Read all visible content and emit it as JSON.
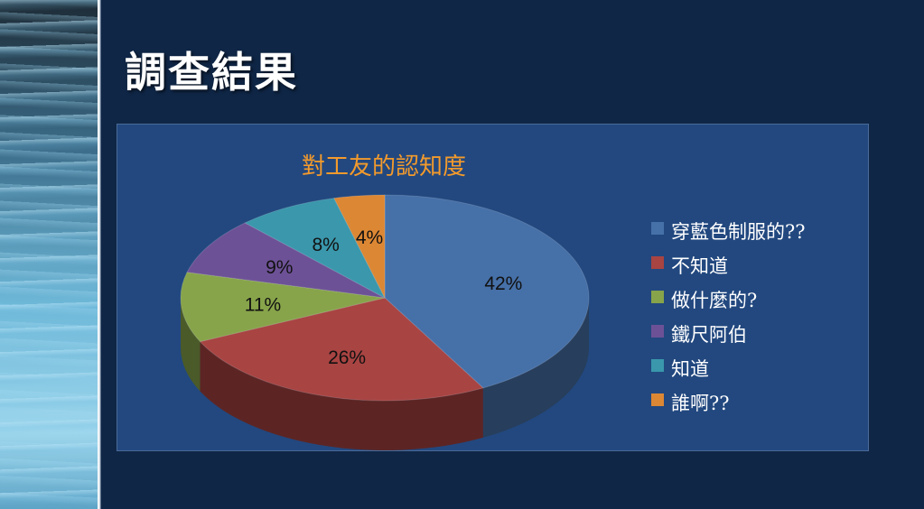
{
  "slide": {
    "title": "調查結果"
  },
  "chart_data": {
    "type": "pie",
    "title": "對工友的認知度",
    "categories": [
      "穿藍色制服的??",
      "不知道",
      "做什麼的?",
      "鐵尺阿伯",
      "知道",
      "誰啊??"
    ],
    "values": [
      42,
      26,
      11,
      9,
      8,
      4
    ],
    "labels": [
      "42%",
      "26%",
      "11%",
      "9%",
      "8%",
      "4%"
    ],
    "colors": [
      "#4670a8",
      "#a84442",
      "#87a44a",
      "#6d5196",
      "#3a97ac",
      "#dc8734"
    ],
    "style": "3d",
    "legend": "right"
  },
  "colors": {
    "background": "#0f2646",
    "chart_background": "#22487f",
    "title_color": "#ffffff",
    "chart_title_color": "#f39a2c"
  }
}
